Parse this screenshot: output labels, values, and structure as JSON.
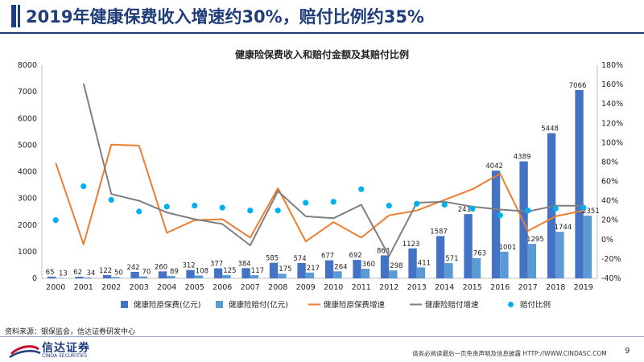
{
  "header": {
    "title": "2019年健康保费收入增速约30%，赔付比例约35%"
  },
  "footer": {
    "source": "资料来源：银保监会，信达证券研发中心",
    "brand_cn": "信达证券",
    "brand_en": "CINDA SECURITIES",
    "disclaimer": "请务必阅读最后一页免责声明及信息披露 HTTP://WWW.CINDASC.COM",
    "page_number": "9"
  },
  "colors": {
    "premium": "#4472c4",
    "claims": "#5b9bd5",
    "premium_growth": "#ed7d31",
    "claims_growth": "#7f7f7f",
    "ratio": "#00b0f0",
    "brand": "#1f3d7a"
  },
  "chart_data": {
    "type": "bar",
    "title": "健康险保费收入和赔付金额及其赔付比例",
    "categories": [
      "2000",
      "2001",
      "2002",
      "2003",
      "2004",
      "2005",
      "2006",
      "2007",
      "2008",
      "2009",
      "2010",
      "2011",
      "2012",
      "2013",
      "2014",
      "2015",
      "2016",
      "2017",
      "2018",
      "2019"
    ],
    "y_left": {
      "min": 0,
      "max": 8000,
      "ticks": [
        0,
        1000,
        2000,
        3000,
        4000,
        5000,
        6000,
        7000,
        8000
      ]
    },
    "y_right": {
      "min": -40,
      "max": 180,
      "ticks": [
        -40,
        -20,
        0,
        20,
        40,
        60,
        80,
        100,
        120,
        140,
        160,
        180
      ],
      "unit": "%"
    },
    "grid": false,
    "legend_position": "bottom",
    "series": [
      {
        "name": "健康险原保费(亿元)",
        "kind": "bar",
        "axis": "left",
        "color": "#4472c4",
        "values": [
          65,
          62,
          122,
          242,
          260,
          312,
          377,
          384,
          585,
          574,
          677,
          692,
          863,
          1123,
          1587,
          2410,
          4042,
          4389,
          5448,
          7066
        ]
      },
      {
        "name": "健康险赔付(亿元)",
        "kind": "bar",
        "axis": "left",
        "color": "#5b9bd5",
        "values": [
          13,
          34,
          50,
          70,
          89,
          108,
          125,
          117,
          175,
          217,
          264,
          360,
          298,
          411,
          571,
          763,
          1001,
          1295,
          1744,
          2351
        ]
      },
      {
        "name": "健康险原保费增速",
        "kind": "line",
        "axis": "right",
        "color": "#ed7d31",
        "values": [
          79,
          -5,
          98,
          97,
          7,
          20,
          21,
          2,
          53,
          -2,
          18,
          2,
          25,
          30,
          41,
          52,
          68,
          9,
          24,
          30
        ]
      },
      {
        "name": "健康险赔付增速",
        "kind": "line",
        "axis": "right",
        "color": "#7f7f7f",
        "values": [
          null,
          161,
          47,
          40,
          28,
          21,
          16,
          -6,
          50,
          24,
          22,
          36,
          -17,
          38,
          39,
          34,
          31,
          29,
          35,
          35
        ]
      },
      {
        "name": "赔付比例",
        "kind": "scatter",
        "axis": "right",
        "color": "#00b0f0",
        "values": [
          20,
          55,
          41,
          29,
          34,
          35,
          33,
          30,
          30,
          38,
          39,
          52,
          35,
          37,
          36,
          32,
          25,
          30,
          32,
          33
        ]
      }
    ]
  }
}
